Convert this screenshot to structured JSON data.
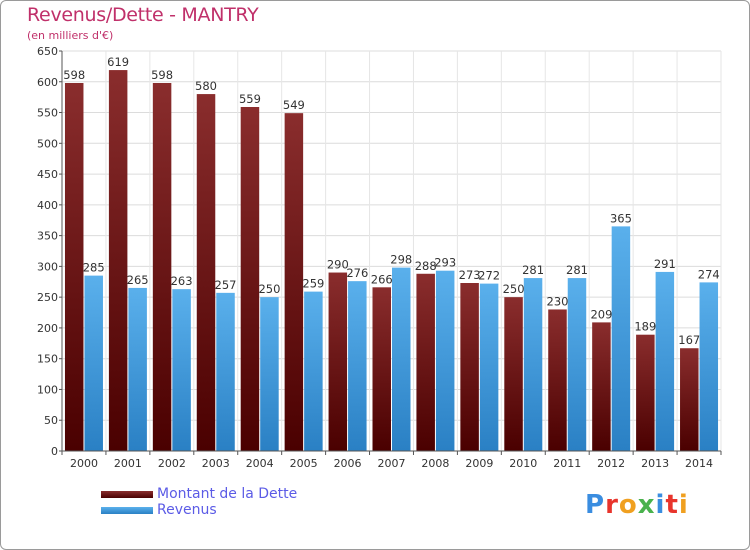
{
  "header": {
    "title": "Revenus/Dette - MANTRY",
    "subtitle": "(en milliers d'€)"
  },
  "legend": {
    "items": [
      {
        "label": "Montant de la Dette",
        "color": "#6e1414"
      },
      {
        "label": "Revenus",
        "color": "#3a96dc"
      }
    ]
  },
  "logo": {
    "text": "Proxiti",
    "colors": [
      "#3a8de0",
      "#e8342c",
      "#f0a020",
      "#49b24d",
      "#3a8de0",
      "#e8342c",
      "#f0a020"
    ]
  },
  "chart_data": {
    "type": "bar",
    "categories": [
      "2000",
      "2001",
      "2002",
      "2003",
      "2004",
      "2005",
      "2006",
      "2007",
      "2008",
      "2009",
      "2010",
      "2011",
      "2012",
      "2013",
      "2014"
    ],
    "series": [
      {
        "name": "Montant de la Dette",
        "color": "#6e1414",
        "values": [
          598,
          619,
          598,
          580,
          559,
          549,
          290,
          266,
          288,
          273,
          250,
          230,
          209,
          189,
          167
        ]
      },
      {
        "name": "Revenus",
        "color": "#3a96dc",
        "values": [
          285,
          265,
          263,
          257,
          250,
          259,
          276,
          298,
          293,
          272,
          281,
          281,
          365,
          291,
          274
        ]
      }
    ],
    "ylim": [
      0,
      650
    ],
    "yticks": [
      0,
      50,
      100,
      150,
      200,
      250,
      300,
      350,
      400,
      450,
      500,
      550,
      600,
      650
    ],
    "grid": true,
    "legend_position": "bottom-left",
    "title": "Revenus/Dette - MANTRY",
    "ylabel": "(en milliers d'€)",
    "xlabel": ""
  }
}
